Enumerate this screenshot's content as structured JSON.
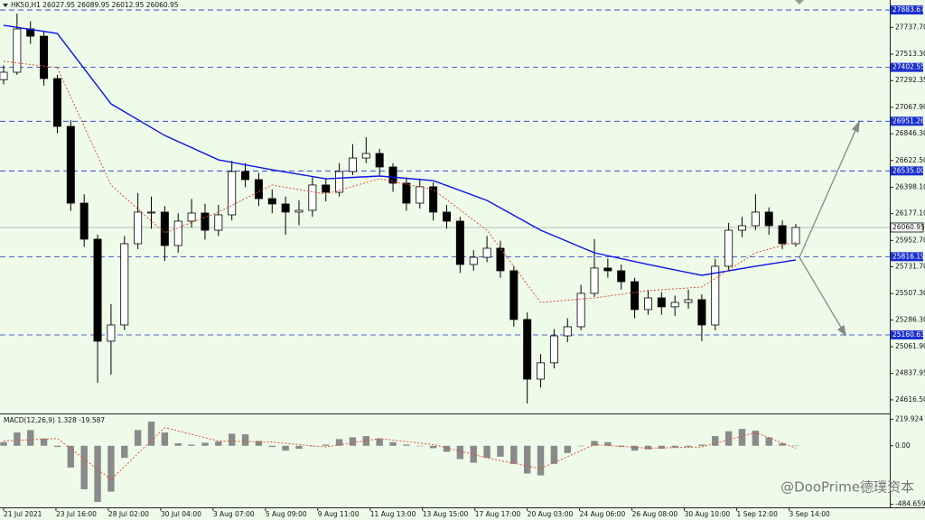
{
  "chart_data": [
    {
      "type": "candlestick",
      "title": "HK50,H1  26027.95 26089.95 26012.95 26060.95",
      "xlim": [
        0,
        66
      ],
      "xticks": [
        {
          "value": 0,
          "label": "21 Jul 2021"
        },
        {
          "value": 3.9,
          "label": "23 Jul 16:00"
        },
        {
          "value": 7.8,
          "label": "28 Jul 02:00"
        },
        {
          "value": 11.7,
          "label": "30 Jul 04:00"
        },
        {
          "value": 15.6,
          "label": "3 Aug 07:00"
        },
        {
          "value": 19.5,
          "label": "5 Aug 09:00"
        },
        {
          "value": 23.4,
          "label": "9 Aug 11:00"
        },
        {
          "value": 27.3,
          "label": "11 Aug 13:00"
        },
        {
          "value": 31.2,
          "label": "13 Aug 15:00"
        },
        {
          "value": 35.1,
          "label": "17 Aug 17:00"
        },
        {
          "value": 39,
          "label": "20 Aug 03:00"
        },
        {
          "value": 42.9,
          "label": "24 Aug 06:00"
        },
        {
          "value": 46.8,
          "label": "26 Aug 08:00"
        },
        {
          "value": 50.7,
          "label": "30 Aug 10:00"
        },
        {
          "value": 54.6,
          "label": "1 Sep 12:00"
        },
        {
          "value": 58.5,
          "label": "3 Sep 14:00"
        }
      ],
      "ylim": [
        24510,
        27937
      ],
      "yticks": [
        {
          "value": 27737.7,
          "label": "27737.70"
        },
        {
          "value": 27513.3,
          "label": "27513.30"
        },
        27292.35,
        {
          "value": 27067.9,
          "label": "27067.90"
        },
        {
          "value": 26846.3,
          "label": "26846.30"
        },
        {
          "value": 26622.5,
          "label": "26622.50"
        },
        {
          "value": 26398.1,
          "label": "26398.10"
        },
        {
          "value": 26177.1,
          "label": "26177.10"
        },
        {
          "value": 25952.7,
          "label": "25952.70"
        },
        {
          "value": 25731.7,
          "label": "25731.70"
        },
        {
          "value": 25507.3,
          "label": "25507.30"
        },
        {
          "value": 25286.3,
          "label": "25286.30"
        },
        {
          "value": 25061.9,
          "label": "25061.90"
        },
        24837.95,
        {
          "value": 24616.5,
          "label": "24616.50"
        }
      ],
      "levels": [
        27883.67,
        27402.55,
        26951.26,
        {
          "value": 26535,
          "label": "26535.00"
        },
        25816.19,
        25160.63
      ],
      "level_color": "#1a2fd0",
      "last_price": 26060.95,
      "up_color": "#ffffff",
      "down_color": "#000000",
      "ohlc": [
        [
          27300,
          27420,
          27260,
          27362
        ],
        [
          27362,
          27853,
          27340,
          27725
        ],
        [
          27725,
          27790,
          27600,
          27664
        ],
        [
          27664,
          27700,
          27250,
          27309
        ],
        [
          27309,
          27340,
          26850,
          26908
        ],
        [
          26908,
          26960,
          26200,
          26265
        ],
        [
          26265,
          26340,
          25900,
          25963
        ],
        [
          25963,
          26000,
          24760,
          25108
        ],
        [
          25108,
          25420,
          24828,
          25244
        ],
        [
          25244,
          25990,
          25200,
          25925
        ],
        [
          25925,
          26350,
          25880,
          26190
        ],
        [
          26190,
          26320,
          26050,
          26190
        ],
        [
          26190,
          26240,
          25780,
          25910
        ],
        [
          25910,
          26180,
          25850,
          26114
        ],
        [
          26114,
          26300,
          26060,
          26182
        ],
        [
          26182,
          26260,
          25960,
          26038
        ],
        [
          26038,
          26250,
          25990,
          26167
        ],
        [
          26167,
          26620,
          26120,
          26530
        ],
        [
          26530,
          26600,
          26400,
          26462
        ],
        [
          26462,
          26520,
          26240,
          26303
        ],
        [
          26303,
          26380,
          26180,
          26258
        ],
        [
          26258,
          26320,
          26000,
          26190
        ],
        [
          26190,
          26290,
          26080,
          26205
        ],
        [
          26205,
          26480,
          26150,
          26417
        ],
        [
          26417,
          26470,
          26280,
          26356
        ],
        [
          26356,
          26600,
          26320,
          26530
        ],
        [
          26530,
          26760,
          26500,
          26643
        ],
        [
          26643,
          26817,
          26600,
          26681
        ],
        [
          26681,
          26720,
          26500,
          26568
        ],
        [
          26568,
          26600,
          26360,
          26432
        ],
        [
          26432,
          26480,
          26200,
          26265
        ],
        [
          26265,
          26470,
          26220,
          26402
        ],
        [
          26402,
          26440,
          26120,
          26190
        ],
        [
          26190,
          26250,
          26050,
          26114
        ],
        [
          26114,
          26150,
          25680,
          25751
        ],
        [
          25751,
          25870,
          25700,
          25811
        ],
        [
          25811,
          25990,
          25770,
          25887
        ],
        [
          25887,
          25950,
          25640,
          25698
        ],
        [
          25698,
          25740,
          25230,
          25290
        ],
        [
          25290,
          25350,
          24586,
          24790
        ],
        [
          24790,
          25000,
          24720,
          24927
        ],
        [
          24927,
          25210,
          24880,
          25153
        ],
        [
          25153,
          25300,
          25100,
          25229
        ],
        [
          25229,
          25580,
          25200,
          25509
        ],
        [
          25509,
          25963,
          25480,
          25721
        ],
        [
          25721,
          25800,
          25640,
          25698
        ],
        [
          25698,
          25750,
          25540,
          25607
        ],
        [
          25607,
          25640,
          25300,
          25373
        ],
        [
          25373,
          25540,
          25330,
          25471
        ],
        [
          25471,
          25520,
          25330,
          25396
        ],
        [
          25396,
          25490,
          25320,
          25433
        ],
        [
          25433,
          25540,
          25380,
          25456
        ],
        [
          25456,
          25500,
          25108,
          25244
        ],
        [
          25244,
          25800,
          25200,
          25736
        ],
        [
          25736,
          26100,
          25700,
          26038
        ],
        [
          26038,
          26150,
          25980,
          26076
        ],
        [
          26076,
          26340,
          26040,
          26190
        ],
        [
          26190,
          26230,
          26000,
          26076
        ],
        [
          26076,
          26120,
          25880,
          25925
        ],
        [
          25925,
          26090,
          25900,
          26061
        ]
      ],
      "lines": [
        {
          "color": "#0a14e6",
          "dashed": false,
          "x": [
            0,
            4,
            8,
            12,
            16,
            20,
            24,
            28,
            32,
            36,
            40,
            44,
            48,
            52,
            56,
            59
          ],
          "values": [
            27755,
            27687,
            27097,
            26832,
            26628,
            26545,
            26469,
            26492,
            26454,
            26288,
            26038,
            25849,
            25751,
            25660,
            25736,
            25789
          ]
        },
        {
          "color": "#e0503a",
          "dashed": true,
          "x": [
            0,
            4,
            8,
            12,
            16,
            20,
            24,
            28,
            32,
            36,
            40,
            44,
            48,
            52,
            56,
            59
          ],
          "values": [
            27453,
            27400,
            26416,
            26016,
            26190,
            26417,
            26341,
            26469,
            26379,
            26038,
            25433,
            25471,
            25532,
            25562,
            25849,
            25940
          ]
        }
      ]
    },
    {
      "type": "macd",
      "title": "MACD(12,26,9) 1.328 -19.587",
      "xlim": [
        0,
        66
      ],
      "ylim": [
        -510,
        260
      ],
      "yticks": [
        219.924,
        {
          "value": 0,
          "label": "0.00"
        },
        -484.659
      ],
      "bar_color": "#8a8a8a",
      "values": [
        30,
        110,
        130,
        60,
        -10,
        -180,
        -360,
        -465,
        -380,
        -100,
        130,
        200,
        110,
        20,
        10,
        25,
        35,
        100,
        95,
        40,
        -10,
        -40,
        -25,
        0,
        10,
        55,
        70,
        80,
        60,
        30,
        10,
        0,
        -20,
        -50,
        -110,
        -140,
        -100,
        -90,
        -150,
        -230,
        -245,
        -150,
        -60,
        0,
        40,
        30,
        -10,
        -40,
        -30,
        -25,
        -15,
        -10,
        10,
        80,
        120,
        140,
        125,
        70,
        20,
        1.328
      ],
      "signal": {
        "color": "#e0503a",
        "x": [
          0,
          4,
          8,
          12,
          16,
          20,
          24,
          28,
          32,
          36,
          40,
          44,
          48,
          52,
          56,
          59
        ],
        "values": [
          40,
          60,
          -280,
          150,
          40,
          30,
          -10,
          60,
          10,
          -100,
          -190,
          10,
          -20,
          -10,
          110,
          -19.587
        ]
      }
    }
  ],
  "watermark": "@DooPrime德璞资本"
}
